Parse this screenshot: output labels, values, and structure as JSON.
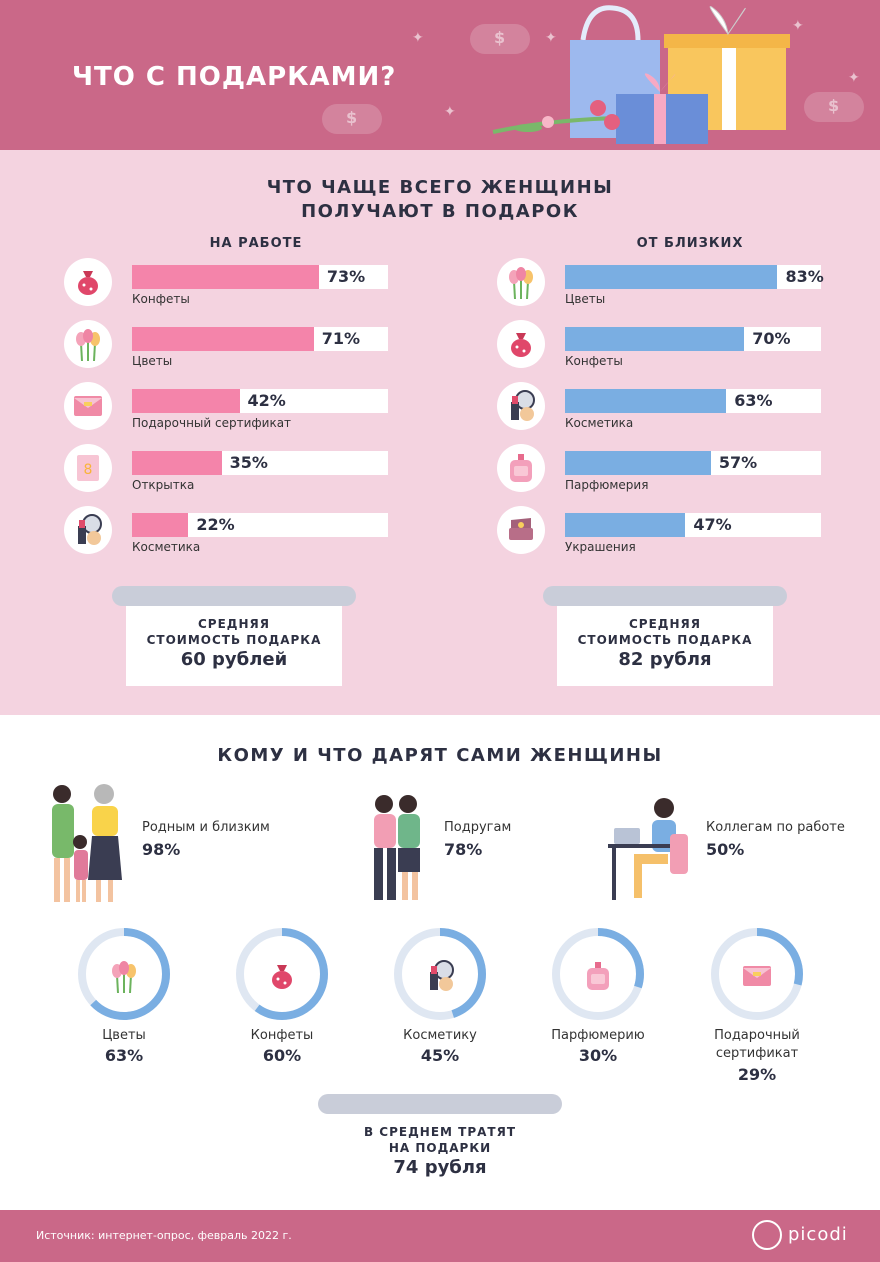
{
  "header": {
    "title": "ЧТО С ПОДАРКАМИ?"
  },
  "section1": {
    "title_line1": "ЧТО ЧАЩЕ ВСЕГО ЖЕНЩИНЫ",
    "title_line2": "ПОЛУЧАЮТ В ПОДАРОК",
    "left_title": "НА РАБОТЕ",
    "right_title": "ОТ БЛИЗКИХ",
    "left_ticket": {
      "line1": "СРЕДНЯЯ",
      "line2": "СТОИМОСТЬ ПОДАРКА",
      "value": "60 рублей"
    },
    "right_ticket": {
      "line1": "СРЕДНЯЯ",
      "line2": "СТОИМОСТЬ ПОДАРКА",
      "value": "82 рубля"
    }
  },
  "chart_data": [
    {
      "type": "bar",
      "title": "НА РАБОТЕ",
      "categories": [
        "Конфеты",
        "Цветы",
        "Подарочный сертификат",
        "Открытка",
        "Косметика"
      ],
      "values": [
        73,
        71,
        42,
        35,
        22
      ],
      "value_labels": [
        "73%",
        "71%",
        "42%",
        "35%",
        "22%"
      ],
      "icons": [
        "candy-icon",
        "tulips-icon",
        "gift-certificate-icon",
        "card-icon",
        "cosmetics-icon"
      ],
      "color": "#f484aa",
      "ylim": [
        0,
        100
      ]
    },
    {
      "type": "bar",
      "title": "ОТ БЛИЗКИХ",
      "categories": [
        "Цветы",
        "Конфеты",
        "Косметика",
        "Парфюмерия",
        "Украшения"
      ],
      "values": [
        83,
        70,
        63,
        57,
        47
      ],
      "value_labels": [
        "83%",
        "70%",
        "63%",
        "57%",
        "47%"
      ],
      "icons": [
        "tulips-icon",
        "candy-icon",
        "cosmetics-icon",
        "perfume-icon",
        "jewelry-box-icon"
      ],
      "color": "#7aaee2",
      "ylim": [
        0,
        100
      ]
    },
    {
      "type": "pie",
      "title": "КОМУ И ЧТО ДАРЯТ САМИ ЖЕНЩИНЫ",
      "categories": [
        "Цветы",
        "Конфеты",
        "Косметику",
        "Парфюмерию",
        "Подарочный сертификат"
      ],
      "values": [
        63,
        60,
        45,
        30,
        29
      ],
      "value_labels": [
        "63%",
        "60%",
        "45%",
        "30%",
        "29%"
      ],
      "icons": [
        "tulips-icon",
        "candy-icon",
        "cosmetics-icon",
        "perfume-icon",
        "gift-certificate-icon"
      ],
      "color": "#7aaee2",
      "track_color": "#dfe7f2"
    }
  ],
  "section2": {
    "title": "КОМУ И ЧТО ДАРЯТ САМИ ЖЕНЩИНЫ",
    "people": [
      {
        "label": "Родным и близким",
        "value": "98%",
        "icon": "family-icon"
      },
      {
        "label": "Подругам",
        "value": "78%",
        "icon": "friends-icon"
      },
      {
        "label": "Коллегам по работе",
        "value": "50%",
        "icon": "coworker-icon"
      }
    ],
    "donut_labels": [
      {
        "line1": "Цветы",
        "line2": ""
      },
      {
        "line1": "Конфеты",
        "line2": ""
      },
      {
        "line1": "Косметику",
        "line2": ""
      },
      {
        "line1": "Парфюмерию",
        "line2": ""
      },
      {
        "line1": "Подарочный",
        "line2": "сертификат"
      }
    ],
    "ticket": {
      "line1": "В СРЕДНЕМ ТРАТЯТ",
      "line2": "НА ПОДАРКИ",
      "value": "74 рубля"
    }
  },
  "footer": {
    "source": "Источник: интернет-опрос, февраль 2022 г.",
    "logo": "picodi"
  }
}
